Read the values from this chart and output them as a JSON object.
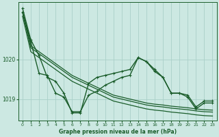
{
  "background_color": "#cce8e2",
  "grid_color": "#aad0c8",
  "line_color": "#1a5c2a",
  "xlabel": "Graphe pression niveau de la mer (hPa)",
  "ytick_values": [
    1019.0,
    1020.0
  ],
  "xticks": [
    0,
    1,
    2,
    3,
    4,
    5,
    6,
    7,
    8,
    9,
    10,
    11,
    12,
    13,
    14,
    15,
    16,
    17,
    18,
    19,
    20,
    21,
    22,
    23
  ],
  "xlim": [
    -0.5,
    23.5
  ],
  "ylim": [
    1018.45,
    1021.45
  ],
  "series": [
    {
      "name": "jagged_with_markers",
      "y": [
        1021.3,
        1020.5,
        1020.1,
        1019.55,
        1019.45,
        1019.15,
        1018.65,
        1018.65,
        1019.4,
        1019.55,
        1019.6,
        1019.65,
        1019.7,
        1019.75,
        1020.05,
        1019.95,
        1019.75,
        1019.55,
        1019.15,
        1019.15,
        1019.1,
        1018.8,
        1018.95,
        1018.95
      ],
      "marker": true,
      "lw": 1.0
    },
    {
      "name": "smooth_upper",
      "y": [
        1021.2,
        1020.35,
        1020.2,
        1020.05,
        1019.9,
        1019.75,
        1019.6,
        1019.5,
        1019.4,
        1019.3,
        1019.2,
        1019.1,
        1019.05,
        1019.0,
        1018.95,
        1018.9,
        1018.87,
        1018.85,
        1018.82,
        1018.8,
        1018.78,
        1018.75,
        1018.73,
        1018.72
      ],
      "marker": false,
      "lw": 0.9
    },
    {
      "name": "smooth_middle",
      "y": [
        1021.2,
        1020.3,
        1020.15,
        1020.0,
        1019.85,
        1019.7,
        1019.55,
        1019.45,
        1019.35,
        1019.25,
        1019.15,
        1019.05,
        1019.0,
        1018.95,
        1018.9,
        1018.85,
        1018.82,
        1018.8,
        1018.77,
        1018.75,
        1018.73,
        1018.7,
        1018.68,
        1018.67
      ],
      "marker": false,
      "lw": 0.9
    },
    {
      "name": "smooth_lower",
      "y": [
        1021.1,
        1020.2,
        1020.05,
        1019.9,
        1019.75,
        1019.6,
        1019.45,
        1019.35,
        1019.25,
        1019.15,
        1019.05,
        1018.95,
        1018.9,
        1018.85,
        1018.8,
        1018.75,
        1018.72,
        1018.7,
        1018.67,
        1018.65,
        1018.63,
        1018.6,
        1018.58,
        1018.57
      ],
      "marker": false,
      "lw": 0.9
    },
    {
      "name": "zigzag_with_markers",
      "y": [
        1021.2,
        1020.45,
        1019.65,
        1019.6,
        1019.15,
        1019.05,
        1018.68,
        1018.68,
        1019.1,
        1019.2,
        1019.35,
        1019.45,
        1019.55,
        1019.6,
        1020.05,
        1019.95,
        1019.7,
        1019.55,
        1019.15,
        1019.15,
        1019.05,
        1018.75,
        1018.9,
        1018.9
      ],
      "marker": true,
      "lw": 1.0
    }
  ]
}
